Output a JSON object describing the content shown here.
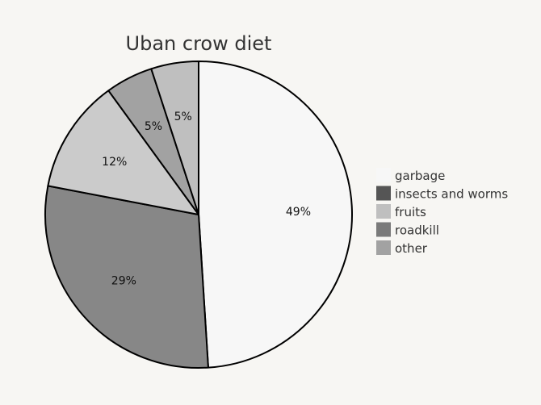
{
  "chart_data": {
    "type": "pie",
    "title": "Uban crow diet",
    "slices": [
      {
        "label": "garbage",
        "value": 49,
        "display": "49%",
        "color": "#f7f7f7"
      },
      {
        "label": "roadkill",
        "value": 29,
        "display": "29%",
        "color": "#878787"
      },
      {
        "label": "fruits",
        "value": 12,
        "display": "12%",
        "color": "#cbcbcb"
      },
      {
        "label": "other",
        "value": 5,
        "display": "5%",
        "color": "#a2a2a2"
      },
      {
        "label": "fruits",
        "value": 5,
        "display": "5%",
        "color": "#bfbfbf"
      }
    ],
    "legend": {
      "placement": "right",
      "entries": [
        {
          "label": "garbage",
          "color": "#f7f7f7"
        },
        {
          "label": "insects and worms",
          "color": "#555555"
        },
        {
          "label": "fruits",
          "color": "#bfbfbf"
        },
        {
          "label": "roadkill",
          "color": "#7a7a7a"
        },
        {
          "label": "other",
          "color": "#a2a2a2"
        }
      ]
    }
  }
}
